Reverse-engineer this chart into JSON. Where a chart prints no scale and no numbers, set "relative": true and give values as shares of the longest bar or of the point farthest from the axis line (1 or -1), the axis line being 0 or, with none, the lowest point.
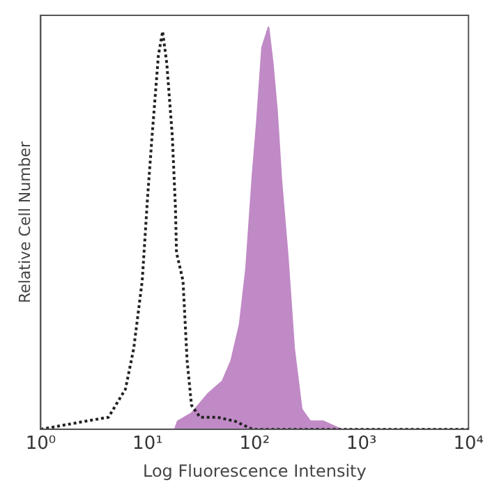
{
  "chart_data": {
    "type": "area",
    "xlabel": "Log Fluorescence Intensity",
    "ylabel": "Relative Cell Number",
    "log": "x",
    "relative": true,
    "grid": false,
    "legend": false,
    "tick_labels": "x",
    "xlim": [
      1,
      10000
    ],
    "xticks": [
      {
        "value": 1,
        "label": "10⁰"
      },
      {
        "value": 10,
        "label": "10¹"
      },
      {
        "value": 100,
        "label": "10²"
      },
      {
        "value": 1000,
        "label": "10³"
      },
      {
        "value": 10000,
        "label": "10⁴"
      }
    ],
    "series": [
      {
        "type": "line",
        "color": "#222222",
        "line_style": "dotted",
        "x": [
          1,
          2.6,
          4.3,
          6.2,
          7.4,
          8.9,
          10,
          11,
          12.6,
          13.8,
          15.1,
          17,
          18.2,
          18.6,
          21.4,
          23.4,
          25.7,
          30.9,
          44.7,
          66,
          95.5,
          10000
        ],
        "values": [
          0,
          0.02,
          0.03,
          0.1,
          0.2,
          0.37,
          0.58,
          0.73,
          0.93,
          0.99,
          0.91,
          0.73,
          0.55,
          0.44,
          0.37,
          0.17,
          0.06,
          0.03,
          0.03,
          0.02,
          0,
          0
        ]
      },
      {
        "type": "area",
        "color": "#c08ac6",
        "x": [
          1,
          18,
          19.1,
          25.7,
          37.2,
          50.1,
          60.3,
          72.4,
          83.2,
          95.5,
          104.7,
          117.5,
          134.9,
          147.9,
          162.2,
          177.8,
          204.2,
          234.4,
          275.4,
          331.1,
          436.5,
          645.7,
          10000
        ],
        "values": [
          0,
          0,
          0.02,
          0.04,
          0.09,
          0.12,
          0.17,
          0.26,
          0.4,
          0.63,
          0.76,
          0.95,
          1,
          0.91,
          0.79,
          0.62,
          0.43,
          0.2,
          0.05,
          0.02,
          0.02,
          0,
          0
        ]
      }
    ]
  }
}
